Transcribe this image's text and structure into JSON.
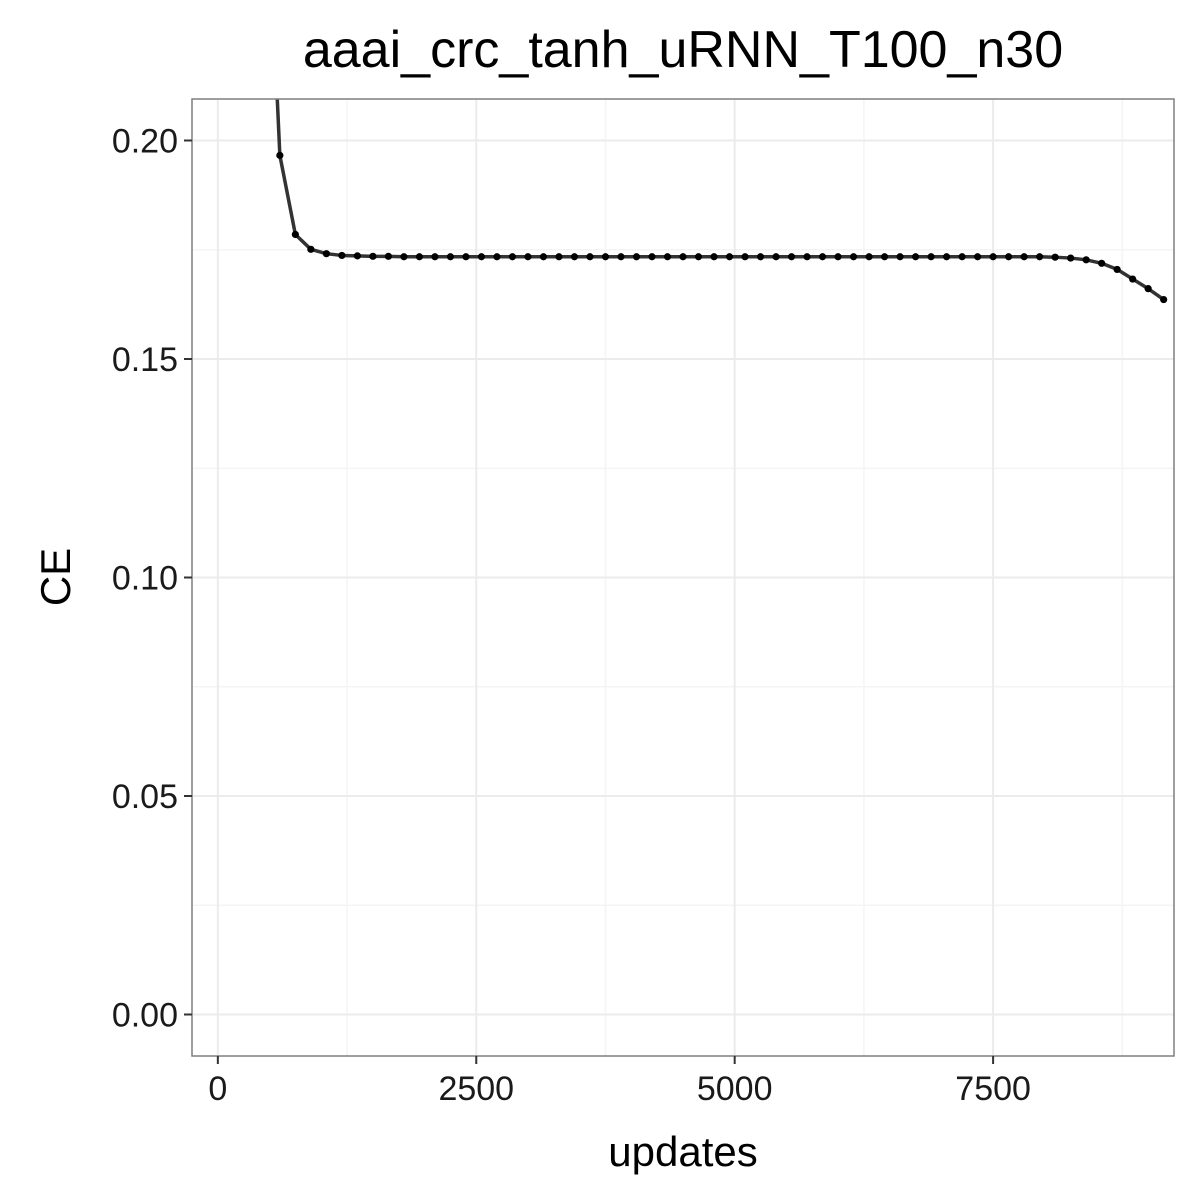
{
  "chart_data": {
    "type": "line",
    "title": "aaai_crc_tanh_uRNN_T100_n30",
    "xlabel": "updates",
    "ylabel": "CE",
    "xlim": [
      -250,
      9250
    ],
    "ylim": [
      -0.0095,
      0.2095
    ],
    "x_ticks": [
      0,
      2500,
      5000,
      7500
    ],
    "x_tick_labels": [
      "0",
      "2500",
      "5000",
      "7500"
    ],
    "y_ticks": [
      0.0,
      0.05,
      0.1,
      0.15,
      0.2
    ],
    "y_tick_labels": [
      "0.00",
      "0.05",
      "0.10",
      "0.15",
      "0.20"
    ],
    "grid": true,
    "legend": "none",
    "colors": {
      "line": "#333333",
      "point": "#000000",
      "grid": "#ebebeb",
      "border": "#7f7f7f"
    },
    "series": [
      {
        "x": [
          600,
          750,
          900,
          1050,
          1200,
          1350,
          1500,
          1650,
          1800,
          1950,
          2100,
          2250,
          2400,
          2550,
          2700,
          2850,
          3000,
          3150,
          3300,
          3450,
          3600,
          3750,
          3900,
          4050,
          4200,
          4350,
          4500,
          4650,
          4800,
          4950,
          5100,
          5250,
          5400,
          5550,
          5700,
          5850,
          6000,
          6150,
          6300,
          6450,
          6600,
          6750,
          6900,
          7050,
          7200,
          7350,
          7500,
          7650,
          7800,
          7950,
          8100,
          8250,
          8400,
          8550,
          8700,
          8850,
          9000,
          9150
        ],
        "y": [
          0.1966,
          0.1785,
          0.1751,
          0.1741,
          0.1737,
          0.1736,
          0.1735,
          0.1735,
          0.1734,
          0.1734,
          0.1734,
          0.1734,
          0.1734,
          0.1734,
          0.1734,
          0.1734,
          0.1734,
          0.1734,
          0.1734,
          0.1734,
          0.1734,
          0.1734,
          0.1734,
          0.1734,
          0.1734,
          0.1734,
          0.1734,
          0.1734,
          0.1734,
          0.1734,
          0.1734,
          0.1734,
          0.1734,
          0.1734,
          0.1734,
          0.1734,
          0.1734,
          0.1734,
          0.1734,
          0.1734,
          0.1734,
          0.1734,
          0.1734,
          0.1734,
          0.1734,
          0.1734,
          0.1734,
          0.1734,
          0.1734,
          0.1734,
          0.1733,
          0.1731,
          0.1727,
          0.1719,
          0.1705,
          0.1683,
          0.1661,
          0.1636
        ]
      }
    ],
    "lead_in": {
      "x": [
        570,
        600
      ],
      "y": [
        0.212,
        0.1966
      ]
    }
  }
}
